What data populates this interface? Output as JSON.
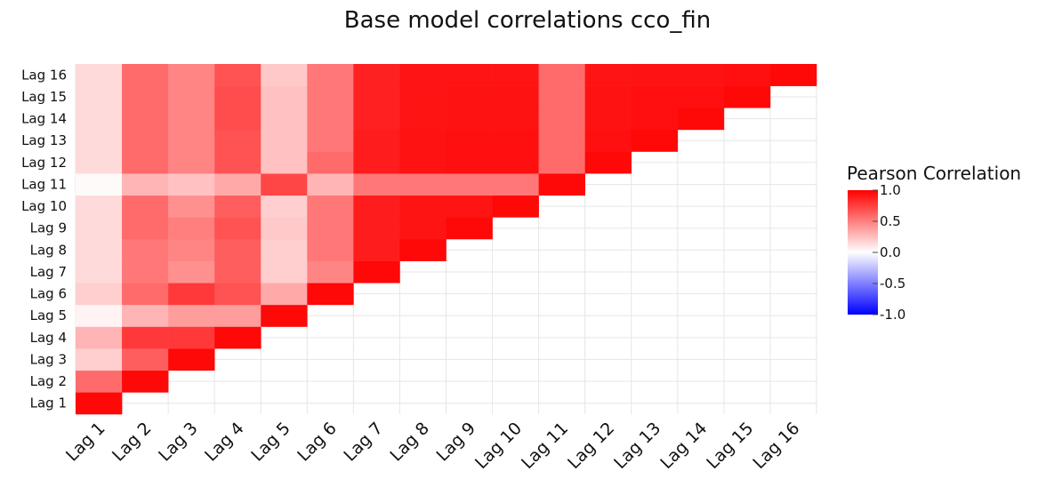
{
  "chart_data": {
    "type": "heatmap",
    "title": "Base model correlations cco_fin",
    "xlabel": "",
    "ylabel": "",
    "x_categories": [
      "Lag 1",
      "Lag 2",
      "Lag 3",
      "Lag 4",
      "Lag 5",
      "Lag 6",
      "Lag 7",
      "Lag 8",
      "Lag 9",
      "Lag 10",
      "Lag 11",
      "Lag 12",
      "Lag 13",
      "Lag 14",
      "Lag 15",
      "Lag 16"
    ],
    "y_categories": [
      "Lag 1",
      "Lag 2",
      "Lag 3",
      "Lag 4",
      "Lag 5",
      "Lag 6",
      "Lag 7",
      "Lag 8",
      "Lag 9",
      "Lag 10",
      "Lag 11",
      "Lag 12",
      "Lag 13",
      "Lag 14",
      "Lag 15",
      "Lag 16"
    ],
    "matrix_lower_triangle": [
      [
        1.0
      ],
      [
        0.6,
        1.0
      ],
      [
        0.2,
        0.65,
        1.0
      ],
      [
        0.3,
        0.8,
        0.8,
        1.0
      ],
      [
        0.05,
        0.3,
        0.4,
        0.4,
        1.0
      ],
      [
        0.2,
        0.6,
        0.8,
        0.7,
        0.35,
        1.0
      ],
      [
        0.15,
        0.55,
        0.45,
        0.65,
        0.2,
        0.5,
        1.0
      ],
      [
        0.15,
        0.55,
        0.5,
        0.65,
        0.2,
        0.55,
        0.92,
        1.0
      ],
      [
        0.15,
        0.6,
        0.52,
        0.7,
        0.22,
        0.55,
        0.92,
        0.95,
        1.0
      ],
      [
        0.15,
        0.6,
        0.45,
        0.65,
        0.2,
        0.55,
        0.92,
        0.95,
        0.95,
        1.0
      ],
      [
        0.02,
        0.3,
        0.25,
        0.35,
        0.75,
        0.3,
        0.55,
        0.55,
        0.55,
        0.55,
        1.0
      ],
      [
        0.15,
        0.6,
        0.5,
        0.7,
        0.25,
        0.6,
        0.92,
        0.96,
        0.97,
        0.97,
        0.6,
        1.0
      ],
      [
        0.15,
        0.6,
        0.5,
        0.7,
        0.25,
        0.55,
        0.92,
        0.96,
        0.97,
        0.97,
        0.6,
        0.97,
        1.0
      ],
      [
        0.15,
        0.6,
        0.5,
        0.72,
        0.25,
        0.55,
        0.9,
        0.95,
        0.96,
        0.96,
        0.6,
        0.96,
        0.97,
        1.0
      ],
      [
        0.15,
        0.6,
        0.5,
        0.72,
        0.25,
        0.55,
        0.9,
        0.95,
        0.96,
        0.96,
        0.6,
        0.96,
        0.97,
        0.97,
        1.0
      ],
      [
        0.15,
        0.6,
        0.5,
        0.7,
        0.22,
        0.55,
        0.9,
        0.95,
        0.95,
        0.95,
        0.6,
        0.95,
        0.96,
        0.96,
        0.97,
        1.0
      ]
    ],
    "colorbar": {
      "title": "Pearson Correlation",
      "ticks": [
        "1.0",
        "0.5",
        "0.0",
        "-0.5",
        "-1.0"
      ],
      "tick_values": [
        1.0,
        0.5,
        0.0,
        -0.5,
        -1.0
      ],
      "range": [
        -1,
        1
      ],
      "colors": {
        "low": "#0000ff",
        "mid": "#ffffff",
        "high": "#ff0000"
      }
    },
    "grid": true
  }
}
